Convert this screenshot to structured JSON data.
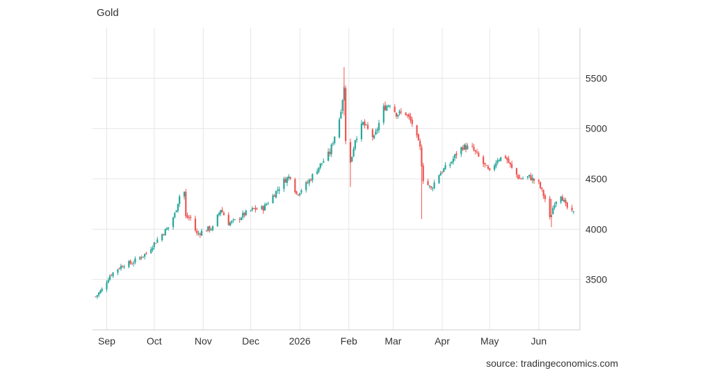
{
  "title": "Gold",
  "source": "source: tradingeconomics.com",
  "colors": {
    "up": "#26a69a",
    "down": "#ef5350",
    "grid": "#e6e6e6",
    "axis": "#cccccc",
    "text": "#333333"
  },
  "chart_data": {
    "type": "candlestick",
    "title": "Gold",
    "xlabel": "",
    "ylabel": "",
    "x_tick_labels": [
      "Sep",
      "Oct",
      "Nov",
      "Dec",
      "2026",
      "Feb",
      "Mar",
      "Apr",
      "May",
      "Jun"
    ],
    "x_range": [
      "2025-08-23",
      "2026-06-27"
    ],
    "y_ticks": [
      3500,
      4000,
      4500,
      5000,
      5500
    ],
    "ylim": [
      3000,
      6000
    ],
    "y_axis_position": "right",
    "grid": true,
    "legend": "none",
    "approximate_closes": [
      [
        "2025-08-25",
        3330
      ],
      [
        "2025-08-29",
        3400
      ],
      [
        "2025-09-03",
        3540
      ],
      [
        "2025-09-08",
        3610
      ],
      [
        "2025-09-12",
        3650
      ],
      [
        "2025-09-17",
        3665
      ],
      [
        "2025-09-22",
        3720
      ],
      [
        "2025-09-26",
        3760
      ],
      [
        "2025-10-01",
        3860
      ],
      [
        "2025-10-06",
        3950
      ],
      [
        "2025-10-10",
        4020
      ],
      [
        "2025-10-14",
        4150
      ],
      [
        "2025-10-17",
        4330
      ],
      [
        "2025-10-20",
        4370
      ],
      [
        "2025-10-21",
        4120
      ],
      [
        "2025-10-24",
        4110
      ],
      [
        "2025-10-28",
        3950
      ],
      [
        "2025-11-03",
        4000
      ],
      [
        "2025-11-07",
        4010
      ],
      [
        "2025-11-12",
        4200
      ],
      [
        "2025-11-17",
        4060
      ],
      [
        "2025-11-21",
        4080
      ],
      [
        "2025-11-27",
        4150
      ],
      [
        "2025-12-03",
        4200
      ],
      [
        "2025-12-09",
        4210
      ],
      [
        "2025-12-15",
        4330
      ],
      [
        "2025-12-22",
        4480
      ],
      [
        "2025-12-26",
        4530
      ],
      [
        "2025-12-30",
        4350
      ],
      [
        "2026-01-06",
        4460
      ],
      [
        "2026-01-12",
        4600
      ],
      [
        "2026-01-20",
        4760
      ],
      [
        "2026-01-26",
        5100
      ],
      [
        "2026-01-29",
        5400
      ],
      [
        "2026-01-30",
        4900
      ],
      [
        "2026-02-02",
        4650
      ],
      [
        "2026-02-05",
        4900
      ],
      [
        "2026-02-10",
        5050
      ],
      [
        "2026-02-17",
        4900
      ],
      [
        "2026-02-23",
        5200
      ],
      [
        "2026-02-27",
        5250
      ],
      [
        "2026-03-03",
        5150
      ],
      [
        "2026-03-09",
        5150
      ],
      [
        "2026-03-13",
        5050
      ],
      [
        "2026-03-18",
        4800
      ],
      [
        "2026-03-20",
        4500
      ],
      [
        "2026-03-25",
        4400
      ],
      [
        "2026-03-30",
        4550
      ],
      [
        "2026-04-06",
        4650
      ],
      [
        "2026-04-10",
        4750
      ],
      [
        "2026-04-14",
        4820
      ],
      [
        "2026-04-20",
        4800
      ],
      [
        "2026-04-27",
        4650
      ],
      [
        "2026-05-01",
        4560
      ],
      [
        "2026-05-06",
        4700
      ],
      [
        "2026-05-11",
        4720
      ],
      [
        "2026-05-15",
        4600
      ],
      [
        "2026-05-20",
        4500
      ],
      [
        "2026-05-26",
        4520
      ],
      [
        "2026-06-01",
        4450
      ],
      [
        "2026-06-05",
        4300
      ],
      [
        "2026-06-08",
        4100
      ],
      [
        "2026-06-11",
        4270
      ],
      [
        "2026-06-15",
        4350
      ],
      [
        "2026-06-18",
        4230
      ],
      [
        "2026-06-22",
        4160
      ]
    ]
  }
}
